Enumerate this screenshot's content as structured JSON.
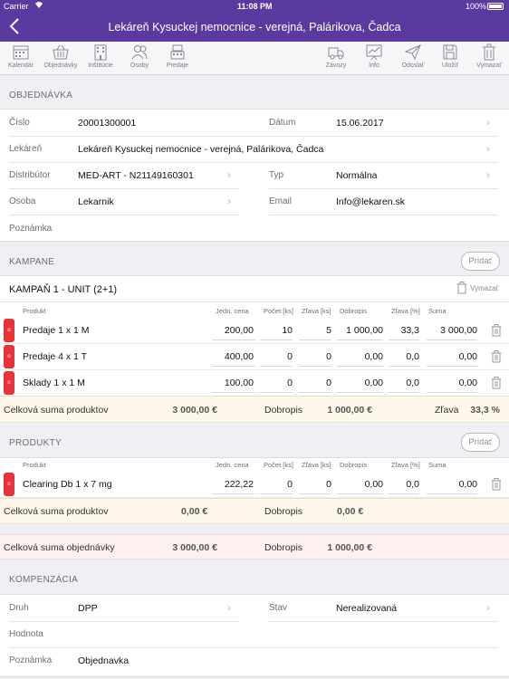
{
  "status": {
    "carrier": "Carrier",
    "time": "11:08 PM",
    "battery": "100%"
  },
  "nav": {
    "title": "Lekáreň Kysuckej nemocnice - verejná, Palárikova, Čadca"
  },
  "toolbar": {
    "left": [
      "Kalendár",
      "Objednávky",
      "Inštitúcie",
      "Osoby",
      "Predaje"
    ],
    "right": [
      "Závozy",
      "Info",
      "Odoslať",
      "Uložiť",
      "Vymazať"
    ]
  },
  "order": {
    "section": "OBJEDNÁVKA",
    "cislo_label": "Číslo",
    "cislo": "20001300001",
    "datum_label": "Dátum",
    "datum": "15.06.2017",
    "lekaren_label": "Lekáreň",
    "lekaren": "Lekáreň Kysuckej nemocnice - verejná, Palárikova, Čadca",
    "distributor_label": "Distribútor",
    "distributor": "MED-ART - N21149160301",
    "typ_label": "Typ",
    "typ": "Normálna",
    "osoba_label": "Osoba",
    "osoba": "Lekarnik",
    "email_label": "Email",
    "email": "Info@lekaren.sk",
    "poznamka_label": "Poznámka"
  },
  "campaigns": {
    "section": "KAMPANE",
    "add": "Pridať",
    "name": "KAMPAŇ 1 - UNIT (2+1)",
    "delete": "Vymazať",
    "columns": [
      "Produkt",
      "Jedn. cena",
      "Počet [ks]",
      "Zľava [ks]",
      "Dobropis",
      "Zľava [%]",
      "Suma"
    ],
    "rows": [
      {
        "tag": "o",
        "name": "Predaje 1 x 1 M",
        "price": "200,00",
        "count": "10",
        "discount_ks": "5",
        "credit": "1 000,00",
        "discount_pct": "33,3",
        "sum": "3 000,00"
      },
      {
        "tag": "o",
        "name": "Predaje 4 x 1 T",
        "price": "400,00",
        "count": "0",
        "discount_ks": "0",
        "credit": "0,00",
        "discount_pct": "0,0",
        "sum": "0,00"
      },
      {
        "tag": "o",
        "name": "Sklady 1 x 1 M",
        "price": "100,00",
        "count": "0",
        "discount_ks": "0",
        "credit": "0,00",
        "discount_pct": "0,0",
        "sum": "0,00"
      }
    ],
    "total_label": "Celková suma produktov",
    "total": "3 000,00 €",
    "credit_label": "Dobropis",
    "credit": "1 000,00 €",
    "discount_label": "Zľava",
    "discount": "33,3 %"
  },
  "products": {
    "section": "PRODUKTY",
    "add": "Pridať",
    "columns": [
      "Produkt",
      "Jedn. cena",
      "Počet [ks]",
      "Zľava [ks]",
      "Dobropis",
      "Zľava [%]",
      "Suma"
    ],
    "rows": [
      {
        "tag": "o",
        "name": "Clearing Db 1 x 7 mg",
        "price": "222,22",
        "count": "0",
        "discount_ks": "0",
        "credit": "0,00",
        "discount_pct": "0,0",
        "sum": "0,00"
      }
    ],
    "total_label": "Celková suma produktov",
    "total": "0,00 €",
    "credit_label": "Dobropis",
    "credit": "0,00 €"
  },
  "order_total": {
    "label": "Celková suma objednávky",
    "total": "3 000,00 €",
    "credit_label": "Dobropis",
    "credit": "1 000,00 €"
  },
  "compensation": {
    "section": "KOMPENZÁCIA",
    "druh_label": "Druh",
    "druh": "DPP",
    "stav_label": "Stav",
    "stav": "Nerealizovaná",
    "hodnota_label": "Hodnota",
    "poznamka_label": "Poznámka",
    "poznamka": "Objednavka"
  }
}
